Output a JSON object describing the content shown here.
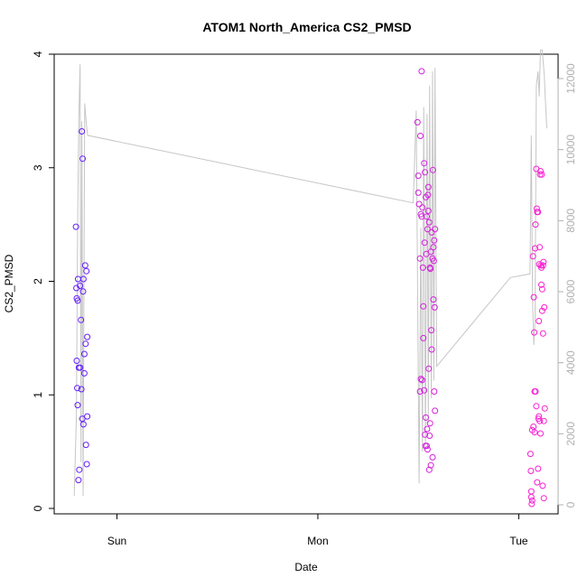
{
  "chart_data": {
    "type": "scatter",
    "title": "ATOM1 North_America CS2_PMSD",
    "xlabel": "Date",
    "ylabel": "CS2_PMSD",
    "x_units": "hours since Sat 00:00",
    "xlim": [
      16.5,
      76.7
    ],
    "ylim": [
      0,
      4
    ],
    "yticks": [
      0,
      1,
      2,
      3,
      4
    ],
    "right_axis": {
      "ylim": [
        0,
        12000
      ],
      "ticks": [
        0,
        2000,
        4000,
        6000,
        8000,
        10000,
        12000
      ],
      "color": "#b0b0b0"
    },
    "xticks": [
      {
        "value": 24,
        "label": "Sun"
      },
      {
        "value": 48,
        "label": "Mon"
      },
      {
        "value": 72,
        "label": "Tue"
      }
    ],
    "color_scale": {
      "from": "#5a1fff",
      "to": "#ff1fd0",
      "domain": [
        16.5,
        76.7
      ]
    },
    "points": [
      [
        19.1,
        2.48
      ],
      [
        19.15,
        1.94
      ],
      [
        19.2,
        1.85
      ],
      [
        19.3,
        1.83
      ],
      [
        19.35,
        2.02
      ],
      [
        19.2,
        1.3
      ],
      [
        19.25,
        1.06
      ],
      [
        19.3,
        0.91
      ],
      [
        19.4,
        0.25
      ],
      [
        19.5,
        0.34
      ],
      [
        19.45,
        1.24
      ],
      [
        19.6,
        1.24
      ],
      [
        19.6,
        1.96
      ],
      [
        19.7,
        1.66
      ],
      [
        19.75,
        1.05
      ],
      [
        19.8,
        3.32
      ],
      [
        19.9,
        3.08
      ],
      [
        19.85,
        0.79
      ],
      [
        19.95,
        1.91
      ],
      [
        20.0,
        2.02
      ],
      [
        20.0,
        0.74
      ],
      [
        20.1,
        1.19
      ],
      [
        20.1,
        1.36
      ],
      [
        20.2,
        2.14
      ],
      [
        20.25,
        1.45
      ],
      [
        20.3,
        0.56
      ],
      [
        20.35,
        2.09
      ],
      [
        20.4,
        0.39
      ],
      [
        20.45,
        1.51
      ],
      [
        20.45,
        0.81
      ],
      [
        59.9,
        3.4
      ],
      [
        60.0,
        2.93
      ],
      [
        60.0,
        2.78
      ],
      [
        60.1,
        2.68
      ],
      [
        60.2,
        2.2
      ],
      [
        60.2,
        1.03
      ],
      [
        60.25,
        3.28
      ],
      [
        60.3,
        2.59
      ],
      [
        60.3,
        1.14
      ],
      [
        60.4,
        3.85
      ],
      [
        60.4,
        2.57
      ],
      [
        60.45,
        1.13
      ],
      [
        60.5,
        2.65
      ],
      [
        60.55,
        2.12
      ],
      [
        60.6,
        1.5
      ],
      [
        60.6,
        1.78
      ],
      [
        60.7,
        3.04
      ],
      [
        60.7,
        1.04
      ],
      [
        60.75,
        2.34
      ],
      [
        60.8,
        2.96
      ],
      [
        60.8,
        0.65
      ],
      [
        60.85,
        0.55
      ],
      [
        60.9,
        2.74
      ],
      [
        60.9,
        0.8
      ],
      [
        60.95,
        2.24
      ],
      [
        61.0,
        0.55
      ],
      [
        61.0,
        2.57
      ],
      [
        61.05,
        0.7
      ],
      [
        61.1,
        2.46
      ],
      [
        61.1,
        0.52
      ],
      [
        61.15,
        2.76
      ],
      [
        61.2,
        2.83
      ],
      [
        61.2,
        2.62
      ],
      [
        61.25,
        1.23
      ],
      [
        61.3,
        2.52
      ],
      [
        61.3,
        0.34
      ],
      [
        61.35,
        0.64
      ],
      [
        61.4,
        2.12
      ],
      [
        61.4,
        0.75
      ],
      [
        61.45,
        2.11
      ],
      [
        61.5,
        2.26
      ],
      [
        61.5,
        0.38
      ],
      [
        61.55,
        1.57
      ],
      [
        61.6,
        2.43
      ],
      [
        61.6,
        1.4
      ],
      [
        61.7,
        2.2
      ],
      [
        61.7,
        0.45
      ],
      [
        61.75,
        2.98
      ],
      [
        61.8,
        2.3
      ],
      [
        61.8,
        1.84
      ],
      [
        61.85,
        2.18
      ],
      [
        61.9,
        2.36
      ],
      [
        61.9,
        1.03
      ],
      [
        61.95,
        1.77
      ],
      [
        62.0,
        0.86
      ],
      [
        62.0,
        2.46
      ],
      [
        73.4,
        0.48
      ],
      [
        73.45,
        0.33
      ],
      [
        73.5,
        0.1
      ],
      [
        73.5,
        0.15
      ],
      [
        73.55,
        0.04
      ],
      [
        73.6,
        0.07
      ],
      [
        73.6,
        0.69
      ],
      [
        73.7,
        2.22
      ],
      [
        73.75,
        0.72
      ],
      [
        73.8,
        1.86
      ],
      [
        73.85,
        1.55
      ],
      [
        73.9,
        0.67
      ],
      [
        73.9,
        1.03
      ],
      [
        73.95,
        2.29
      ],
      [
        74.0,
        2.5
      ],
      [
        74.0,
        1.03
      ],
      [
        74.1,
        2.99
      ],
      [
        74.1,
        0.9
      ],
      [
        74.15,
        2.64
      ],
      [
        74.2,
        0.23
      ],
      [
        74.2,
        2.61
      ],
      [
        74.3,
        2.61
      ],
      [
        74.3,
        0.35
      ],
      [
        74.35,
        0.79
      ],
      [
        74.4,
        0.81
      ],
      [
        74.4,
        1.65
      ],
      [
        74.45,
        2.15
      ],
      [
        74.5,
        0.77
      ],
      [
        74.5,
        2.3
      ],
      [
        74.55,
        2.94
      ],
      [
        74.6,
        2.97
      ],
      [
        74.6,
        0.66
      ],
      [
        74.65,
        2.14
      ],
      [
        74.7,
        1.97
      ],
      [
        74.7,
        2.12
      ],
      [
        74.75,
        2.94
      ],
      [
        74.8,
        1.74
      ],
      [
        74.8,
        1.93
      ],
      [
        74.85,
        0.2
      ],
      [
        74.9,
        1.54
      ],
      [
        74.9,
        2.14
      ],
      [
        74.95,
        2.17
      ],
      [
        75.0,
        0.77
      ],
      [
        75.0,
        0.09
      ],
      [
        75.05,
        1.77
      ],
      [
        75.1,
        0.88
      ]
    ],
    "right_series": [
      [
        18.9,
        250
      ],
      [
        19.15,
        2500
      ],
      [
        19.3,
        8000
      ],
      [
        19.45,
        10900
      ],
      [
        19.6,
        12400
      ],
      [
        19.7,
        1200
      ],
      [
        19.8,
        10800
      ],
      [
        19.95,
        250
      ],
      [
        20.15,
        11300
      ],
      [
        20.35,
        10700
      ],
      [
        20.5,
        10400
      ],
      [
        59.4,
        8500
      ],
      [
        59.75,
        11100
      ],
      [
        60.1,
        600
      ],
      [
        60.3,
        7800
      ],
      [
        60.5,
        1500
      ],
      [
        60.65,
        11200
      ],
      [
        60.85,
        1700
      ],
      [
        61.05,
        11000
      ],
      [
        61.2,
        2300
      ],
      [
        61.35,
        11800
      ],
      [
        61.55,
        3000
      ],
      [
        61.7,
        12200
      ],
      [
        61.85,
        3500
      ],
      [
        62.0,
        12300
      ],
      [
        62.2,
        3900
      ],
      [
        71.0,
        6400
      ],
      [
        73.35,
        6500
      ],
      [
        73.5,
        10400
      ],
      [
        73.65,
        5800
      ],
      [
        73.8,
        4500
      ],
      [
        73.95,
        5200
      ],
      [
        74.1,
        11800
      ],
      [
        74.3,
        12200
      ],
      [
        74.45,
        11500
      ],
      [
        74.6,
        12800
      ],
      [
        74.8,
        12800
      ],
      [
        75.05,
        12100
      ],
      [
        75.2,
        11300
      ],
      [
        75.35,
        10600
      ]
    ]
  }
}
